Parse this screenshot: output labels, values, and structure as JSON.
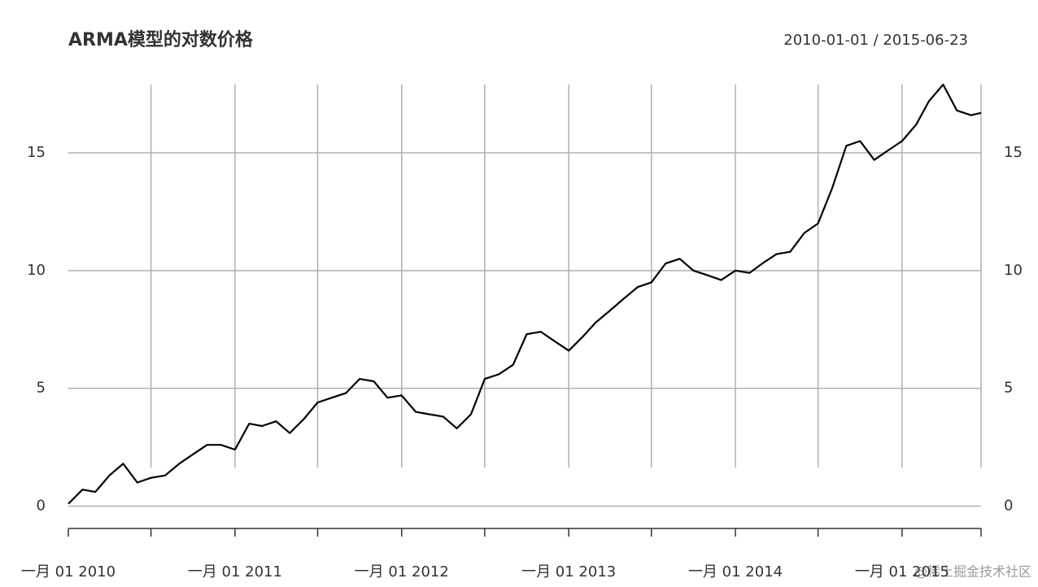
{
  "chart_data": {
    "type": "line",
    "title": "ARMA模型的对数价格",
    "subtitle": "2010-01-01 / 2015-06-23",
    "x": [
      "2010-01-01",
      "2010-02-01",
      "2010-03-01",
      "2010-04-01",
      "2010-05-01",
      "2010-06-01",
      "2010-07-01",
      "2010-08-01",
      "2010-09-01",
      "2010-10-01",
      "2010-11-01",
      "2010-12-01",
      "2011-01-01",
      "2011-02-01",
      "2011-03-01",
      "2011-04-01",
      "2011-05-01",
      "2011-06-01",
      "2011-07-01",
      "2011-08-01",
      "2011-09-01",
      "2011-10-01",
      "2011-11-01",
      "2011-12-01",
      "2012-01-01",
      "2012-02-01",
      "2012-03-01",
      "2012-04-01",
      "2012-05-01",
      "2012-06-01",
      "2012-07-01",
      "2012-08-01",
      "2012-09-01",
      "2012-10-01",
      "2012-11-01",
      "2012-12-01",
      "2013-01-01",
      "2013-02-01",
      "2013-03-01",
      "2013-04-01",
      "2013-05-01",
      "2013-06-01",
      "2013-07-01",
      "2013-08-01",
      "2013-09-01",
      "2013-10-01",
      "2013-11-01",
      "2013-12-01",
      "2014-01-01",
      "2014-02-01",
      "2014-03-01",
      "2014-04-01",
      "2014-05-01",
      "2014-06-01",
      "2014-07-01",
      "2014-08-01",
      "2014-09-01",
      "2014-10-01",
      "2014-11-01",
      "2014-12-01",
      "2015-01-01",
      "2015-02-01",
      "2015-03-01",
      "2015-04-01",
      "2015-05-01",
      "2015-06-01",
      "2015-06-23"
    ],
    "series": [
      {
        "color": "#000000",
        "values": [
          0.1,
          0.7,
          0.6,
          1.3,
          1.8,
          1.0,
          1.2,
          1.3,
          1.8,
          2.2,
          2.6,
          2.6,
          2.4,
          3.5,
          3.4,
          3.6,
          3.1,
          3.7,
          4.4,
          4.6,
          4.8,
          5.4,
          5.3,
          4.6,
          4.7,
          4.0,
          3.9,
          3.8,
          3.3,
          3.9,
          5.4,
          5.6,
          6.0,
          7.3,
          7.4,
          7.0,
          6.6,
          7.2,
          7.8,
          8.3,
          8.8,
          9.3,
          9.5,
          10.3,
          10.5,
          10.0,
          9.8,
          9.6,
          10.0,
          9.9,
          10.3,
          10.7,
          10.8,
          11.6,
          12.0,
          13.5,
          15.3,
          15.5,
          14.7,
          15.1,
          15.5,
          16.2,
          17.2,
          17.9,
          16.8,
          16.6,
          16.7
        ]
      }
    ],
    "xlim": [
      "2010-01-01",
      "2015-06-23"
    ],
    "xticks": [
      {
        "value": "2010-01-01",
        "label": "一月 01 2010"
      },
      {
        "value": "2010-07-01",
        "label": null
      },
      {
        "value": "2011-01-01",
        "label": "一月 01 2011"
      },
      {
        "value": "2011-07-01",
        "label": null
      },
      {
        "value": "2012-01-01",
        "label": "一月 01 2012"
      },
      {
        "value": "2012-07-01",
        "label": null
      },
      {
        "value": "2013-01-01",
        "label": "一月 01 2013"
      },
      {
        "value": "2013-07-01",
        "label": null
      },
      {
        "value": "2014-01-01",
        "label": "一月 01 2014"
      },
      {
        "value": "2014-07-01",
        "label": null
      },
      {
        "value": "2015-01-01",
        "label": "一月 01 2015"
      },
      {
        "value": "2015-06-23",
        "label": null
      }
    ],
    "ylim": [
      -0.95,
      17.9
    ],
    "yticks": [
      0,
      5,
      10,
      15
    ],
    "grid": true,
    "watermark": "@稀土掘金技术社区"
  }
}
